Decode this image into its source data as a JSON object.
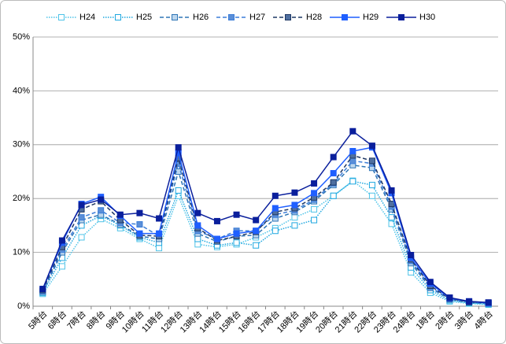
{
  "chart_data": {
    "type": "line",
    "categories": [
      "5時台",
      "6時台",
      "7時台",
      "8時台",
      "9時台",
      "10時台",
      "11時台",
      "12時台",
      "13時台",
      "14時台",
      "15時台",
      "16時台",
      "17時台",
      "18時台",
      "19時台",
      "20時台",
      "21時台",
      "22時台",
      "23時台",
      "24時台",
      "1時台",
      "2時台",
      "3時台",
      "4時台"
    ],
    "ylim": [
      0,
      50
    ],
    "yticks": [
      {
        "value": 0,
        "label": "0%"
      },
      {
        "value": 10,
        "label": "10%"
      },
      {
        "value": 20,
        "label": "20%"
      },
      {
        "value": 30,
        "label": "30%"
      },
      {
        "value": 40,
        "label": "40%"
      },
      {
        "value": 50,
        "label": "50%"
      }
    ],
    "grid": true,
    "legend": "top",
    "series": [
      {
        "name": "H24",
        "color": "#4dc3e8",
        "line_style": "dotted",
        "marker_fill": "#ffffff",
        "values": [
          2.3,
          7.4,
          12.8,
          16.2,
          14.5,
          12.5,
          10.8,
          20.5,
          11.5,
          11,
          11.5,
          12.8,
          14.5,
          16.5,
          18,
          20.5,
          23.3,
          20.5,
          15.3,
          6.3,
          2.5,
          0.9,
          0.5,
          0.3
        ]
      },
      {
        "name": "H25",
        "color": "#1fa8e0",
        "line_style": "dotted",
        "marker_fill": "#ffffff",
        "values": [
          2.5,
          9,
          15,
          16.8,
          15,
          12.8,
          11.8,
          21.5,
          12.5,
          11.3,
          11.8,
          11.3,
          14,
          15,
          16,
          20.5,
          23.2,
          22.5,
          16.5,
          7.2,
          3,
          1.1,
          0.6,
          0.4
        ]
      },
      {
        "name": "H26",
        "color": "#2e75b6",
        "line_style": "dashed",
        "marker_fill": "#bdd7ee",
        "values": [
          2.7,
          10,
          16,
          17,
          15.2,
          13,
          12.5,
          25,
          13.5,
          12,
          13,
          13.2,
          16.3,
          17.5,
          19.5,
          22.5,
          26.2,
          25.7,
          18,
          8,
          3.4,
          1.3,
          0.7,
          0.5
        ]
      },
      {
        "name": "H27",
        "color": "#3b7dd8",
        "line_style": "dashed",
        "marker_fill": "#5b8fd8",
        "values": [
          2.8,
          10.5,
          16.5,
          17.8,
          15.5,
          15.2,
          13,
          26.5,
          14,
          12.5,
          14,
          14,
          17,
          17.8,
          19.8,
          22.8,
          27,
          26.5,
          18.5,
          8.4,
          3.6,
          1.3,
          0.8,
          0.5
        ]
      },
      {
        "name": "H28",
        "color": "#1f3864",
        "line_style": "dashed",
        "marker_fill": "#4f6fa0",
        "values": [
          3,
          11,
          18,
          19.5,
          16,
          13.2,
          13,
          27.5,
          14.5,
          12.2,
          13,
          13.8,
          17.5,
          18.2,
          20.2,
          23,
          28,
          27,
          19,
          8.7,
          3.8,
          1.4,
          0.8,
          0.6
        ]
      },
      {
        "name": "H29",
        "color": "#1f5fff",
        "line_style": "solid",
        "marker_fill": "#1f5fff",
        "values": [
          3.2,
          11.8,
          19,
          20.3,
          16.8,
          13.5,
          13.5,
          28.5,
          15,
          12.5,
          13.5,
          14,
          18.2,
          18.8,
          21,
          24.7,
          28.8,
          29.5,
          21,
          9,
          4.2,
          1.5,
          0.9,
          0.6
        ]
      },
      {
        "name": "H30",
        "color": "#0a1f9c",
        "line_style": "solid",
        "marker_fill": "#0a1f9c",
        "values": [
          3.2,
          12.2,
          18.8,
          19.8,
          17,
          17.3,
          16.3,
          29.5,
          17.3,
          15.8,
          17,
          16,
          20.5,
          21.1,
          22.8,
          27.7,
          32.5,
          29.8,
          21.5,
          9.5,
          4.5,
          1.6,
          0.9,
          0.7
        ]
      }
    ]
  }
}
